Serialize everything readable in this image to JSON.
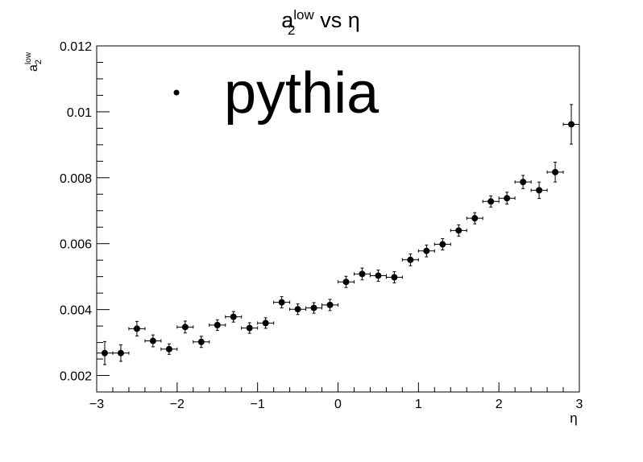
{
  "chart_data": {
    "type": "scatter",
    "title": {
      "base": "a",
      "sub": "2",
      "sup": "low",
      "rest": " vs η"
    },
    "xlabel": "η",
    "ylabel": {
      "base": "a",
      "sub": "2",
      "sup": "low"
    },
    "xlim": [
      -3,
      3
    ],
    "ylim": [
      0.0015,
      0.012
    ],
    "x_ticks": [
      "−3",
      "−2",
      "−1",
      "0",
      "1",
      "2",
      "3"
    ],
    "x_tick_values": [
      -3,
      -2,
      -1,
      0,
      1,
      2,
      3
    ],
    "y_ticks": [
      "0.002",
      "0.004",
      "0.006",
      "0.008",
      "0.01",
      "0.012"
    ],
    "y_tick_values": [
      0.002,
      0.004,
      0.006,
      0.008,
      0.01,
      0.012
    ],
    "grid": false,
    "legend_position": "top-left",
    "series": [
      {
        "name": "pythia",
        "color": "#000000",
        "x_err": 0.1,
        "points": [
          {
            "x": -2.9,
            "y": 0.00268,
            "err": 0.00035
          },
          {
            "x": -2.7,
            "y": 0.00268,
            "err": 0.00025
          },
          {
            "x": -2.5,
            "y": 0.00342,
            "err": 0.00022
          },
          {
            "x": -2.3,
            "y": 0.00305,
            "err": 0.00018
          },
          {
            "x": -2.1,
            "y": 0.0028,
            "err": 0.00016
          },
          {
            "x": -1.9,
            "y": 0.00347,
            "err": 0.00018
          },
          {
            "x": -1.7,
            "y": 0.00302,
            "err": 0.00017
          },
          {
            "x": -1.5,
            "y": 0.00353,
            "err": 0.00016
          },
          {
            "x": -1.3,
            "y": 0.00378,
            "err": 0.00016
          },
          {
            "x": -1.1,
            "y": 0.00344,
            "err": 0.00016
          },
          {
            "x": -0.9,
            "y": 0.00359,
            "err": 0.00016
          },
          {
            "x": -0.7,
            "y": 0.00422,
            "err": 0.00017
          },
          {
            "x": -0.5,
            "y": 0.00401,
            "err": 0.00016
          },
          {
            "x": -0.3,
            "y": 0.00405,
            "err": 0.00016
          },
          {
            "x": -0.1,
            "y": 0.00414,
            "err": 0.00017
          },
          {
            "x": 0.1,
            "y": 0.00484,
            "err": 0.00017
          },
          {
            "x": 0.3,
            "y": 0.00508,
            "err": 0.00018
          },
          {
            "x": 0.5,
            "y": 0.00503,
            "err": 0.00017
          },
          {
            "x": 0.7,
            "y": 0.00498,
            "err": 0.00017
          },
          {
            "x": 0.9,
            "y": 0.00551,
            "err": 0.00018
          },
          {
            "x": 1.1,
            "y": 0.00578,
            "err": 0.00018
          },
          {
            "x": 1.3,
            "y": 0.00598,
            "err": 0.00017
          },
          {
            "x": 1.5,
            "y": 0.0064,
            "err": 0.00017
          },
          {
            "x": 1.7,
            "y": 0.00677,
            "err": 0.00017
          },
          {
            "x": 1.9,
            "y": 0.00728,
            "err": 0.00017
          },
          {
            "x": 2.1,
            "y": 0.00738,
            "err": 0.00018
          },
          {
            "x": 2.3,
            "y": 0.00787,
            "err": 0.0002
          },
          {
            "x": 2.5,
            "y": 0.00762,
            "err": 0.00025
          },
          {
            "x": 2.7,
            "y": 0.00817,
            "err": 0.0003
          },
          {
            "x": 2.9,
            "y": 0.00962,
            "err": 0.0006
          }
        ]
      }
    ]
  }
}
